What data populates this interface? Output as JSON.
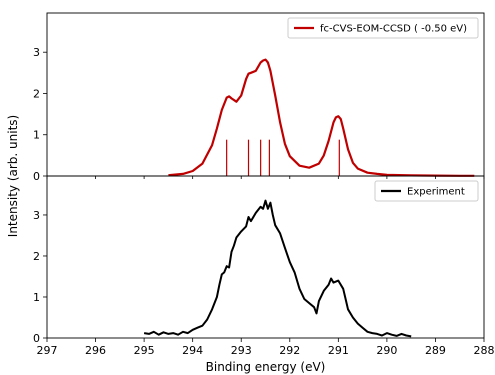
{
  "chart_data": [
    {
      "type": "line",
      "panel": "top",
      "xlabel": "",
      "ylabel": "Intensity (arb. units)",
      "xlim": [
        297,
        288
      ],
      "ylim": [
        0,
        3.95
      ],
      "x_reversed": true,
      "yticks": [
        "0",
        "1",
        "2",
        "3"
      ],
      "legend": {
        "position": "top-right",
        "entries": [
          "fc-CVS-EOM-CCSD ( -0.50 eV)"
        ]
      },
      "colors": {
        "series": "#c00000"
      },
      "series": [
        {
          "name": "fc-CVS-EOM-CCSD ( -0.50 eV)",
          "style": "line",
          "x": [
            294.5,
            294.2,
            294.0,
            293.8,
            293.6,
            293.5,
            293.4,
            293.3,
            293.25,
            293.2,
            293.1,
            293.0,
            292.9,
            292.85,
            292.8,
            292.7,
            292.6,
            292.55,
            292.5,
            292.45,
            292.4,
            292.3,
            292.2,
            292.1,
            292.0,
            291.8,
            291.6,
            291.4,
            291.3,
            291.2,
            291.1,
            291.05,
            291.0,
            290.95,
            290.9,
            290.8,
            290.7,
            290.6,
            290.4,
            290.2,
            290.0,
            289.5,
            289.0,
            288.5,
            288.2
          ],
          "y": [
            0.02,
            0.05,
            0.12,
            0.3,
            0.75,
            1.15,
            1.6,
            1.9,
            1.93,
            1.88,
            1.8,
            1.95,
            2.35,
            2.48,
            2.5,
            2.55,
            2.75,
            2.8,
            2.82,
            2.75,
            2.55,
            1.95,
            1.3,
            0.78,
            0.48,
            0.25,
            0.2,
            0.3,
            0.5,
            0.85,
            1.3,
            1.42,
            1.45,
            1.38,
            1.15,
            0.65,
            0.32,
            0.18,
            0.08,
            0.05,
            0.03,
            0.015,
            0.01,
            0.005,
            0.005
          ]
        },
        {
          "name": "stick transitions",
          "style": "stick",
          "x": [
            293.3,
            292.85,
            292.6,
            292.42,
            290.98
          ],
          "y": [
            0.88,
            0.88,
            0.88,
            0.88,
            0.88
          ]
        }
      ]
    },
    {
      "type": "line",
      "panel": "bottom",
      "xlabel": "Binding energy (eV)",
      "ylabel": "Intensity (arb. units)",
      "xlim": [
        297,
        288
      ],
      "ylim": [
        0,
        3.95
      ],
      "x_reversed": true,
      "xticks": [
        "297",
        "296",
        "295",
        "294",
        "293",
        "292",
        "291",
        "290",
        "289",
        "288"
      ],
      "yticks": [
        "0",
        "1",
        "2",
        "3"
      ],
      "legend": {
        "position": "top-right",
        "entries": [
          "Experiment"
        ]
      },
      "colors": {
        "series": "#000000"
      },
      "series": [
        {
          "name": "Experiment",
          "style": "line",
          "x": [
            295.0,
            294.9,
            294.8,
            294.7,
            294.6,
            294.5,
            294.4,
            294.3,
            294.2,
            294.1,
            294.0,
            293.9,
            293.8,
            293.7,
            293.6,
            293.5,
            293.45,
            293.4,
            293.35,
            293.3,
            293.25,
            293.2,
            293.15,
            293.1,
            293.0,
            292.9,
            292.85,
            292.8,
            292.7,
            292.6,
            292.55,
            292.5,
            292.45,
            292.4,
            292.35,
            292.3,
            292.2,
            292.1,
            292.0,
            291.9,
            291.8,
            291.7,
            291.6,
            291.5,
            291.45,
            291.4,
            291.3,
            291.2,
            291.15,
            291.1,
            291.0,
            290.9,
            290.85,
            290.8,
            290.7,
            290.6,
            290.5,
            290.4,
            290.3,
            290.2,
            290.1,
            290.0,
            289.9,
            289.8,
            289.7,
            289.6,
            289.5
          ],
          "y": [
            0.12,
            0.1,
            0.15,
            0.08,
            0.14,
            0.1,
            0.12,
            0.08,
            0.15,
            0.12,
            0.2,
            0.25,
            0.3,
            0.45,
            0.7,
            1.0,
            1.3,
            1.55,
            1.6,
            1.75,
            1.72,
            2.1,
            2.25,
            2.45,
            2.6,
            2.72,
            2.95,
            2.85,
            3.05,
            3.2,
            3.15,
            3.35,
            3.15,
            3.3,
            3.0,
            2.75,
            2.55,
            2.2,
            1.85,
            1.6,
            1.2,
            0.95,
            0.85,
            0.75,
            0.6,
            0.9,
            1.15,
            1.3,
            1.45,
            1.35,
            1.4,
            1.2,
            0.95,
            0.7,
            0.5,
            0.35,
            0.25,
            0.15,
            0.12,
            0.1,
            0.06,
            0.12,
            0.08,
            0.05,
            0.1,
            0.06,
            0.04
          ]
        }
      ]
    }
  ]
}
